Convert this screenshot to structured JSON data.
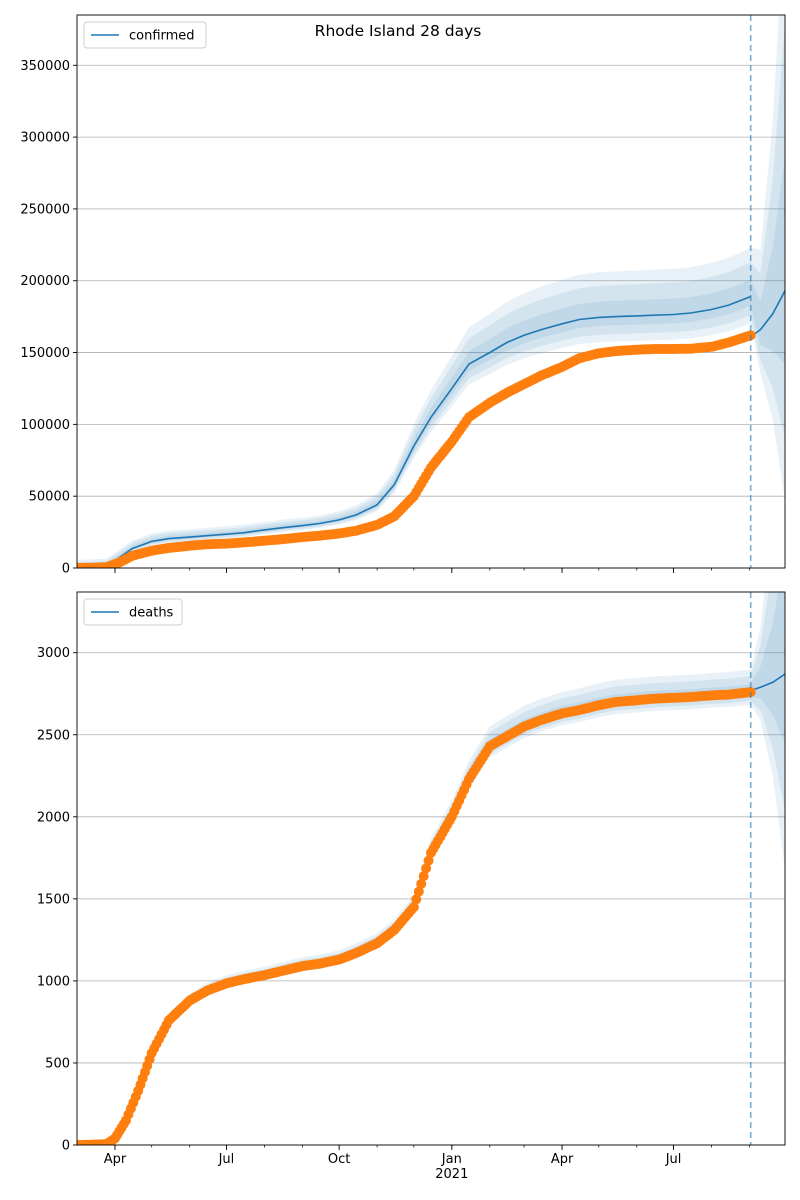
{
  "title": "Rhode Island 28 days",
  "chart_data": [
    {
      "type": "line",
      "legend": "confirmed",
      "legend_position": "top-left",
      "grid": "y",
      "xlim": [
        "2020-03-01",
        "2021-09-30"
      ],
      "ylim": [
        0,
        385000
      ],
      "yticks": [
        0,
        50000,
        100000,
        150000,
        200000,
        250000,
        300000,
        350000
      ],
      "forecast_start": "2021-09-02",
      "observed": {
        "color": "#ff7f0e",
        "x": [
          "2020-03-01",
          "2020-03-25",
          "2020-04-05",
          "2020-04-15",
          "2020-05-01",
          "2020-05-15",
          "2020-06-01",
          "2020-06-15",
          "2020-07-01",
          "2020-07-15",
          "2020-08-01",
          "2020-08-15",
          "2020-09-01",
          "2020-09-15",
          "2020-10-01",
          "2020-10-15",
          "2020-11-01",
          "2020-11-15",
          "2020-12-01",
          "2020-12-15",
          "2021-01-01",
          "2021-01-15",
          "2021-02-01",
          "2021-02-15",
          "2021-03-01",
          "2021-03-15",
          "2021-04-01",
          "2021-04-15",
          "2021-05-01",
          "2021-05-15",
          "2021-06-01",
          "2021-06-15",
          "2021-07-01",
          "2021-07-15",
          "2021-08-01",
          "2021-08-15",
          "2021-09-02"
        ],
        "y": [
          0,
          500,
          4000,
          8500,
          12000,
          14000,
          15500,
          16500,
          17000,
          17800,
          19000,
          20000,
          21500,
          22500,
          24000,
          26000,
          30000,
          36000,
          50000,
          70000,
          88000,
          105000,
          115000,
          122000,
          128000,
          134000,
          140000,
          146000,
          149500,
          151000,
          152000,
          152500,
          152500,
          152700,
          154000,
          157000,
          162000
        ]
      },
      "mean": {
        "color": "#1f77b4",
        "x": [
          "2020-03-01",
          "2020-03-25",
          "2020-04-05",
          "2020-04-15",
          "2020-05-01",
          "2020-05-15",
          "2020-06-01",
          "2020-06-15",
          "2020-07-01",
          "2020-07-15",
          "2020-08-01",
          "2020-08-15",
          "2020-09-01",
          "2020-09-15",
          "2020-10-01",
          "2020-10-15",
          "2020-11-01",
          "2020-11-15",
          "2020-12-01",
          "2020-12-15",
          "2021-01-01",
          "2021-01-15",
          "2021-02-01",
          "2021-02-15",
          "2021-03-01",
          "2021-03-15",
          "2021-04-01",
          "2021-04-15",
          "2021-05-01",
          "2021-05-15",
          "2021-06-01",
          "2021-06-15",
          "2021-07-01",
          "2021-07-15",
          "2021-08-01",
          "2021-08-15",
          "2021-09-02"
        ],
        "y": [
          0,
          1000,
          7500,
          13500,
          18500,
          20500,
          21500,
          22500,
          23500,
          24500,
          26500,
          28000,
          29500,
          31000,
          33500,
          37000,
          44000,
          58000,
          85000,
          105000,
          125000,
          142000,
          150000,
          157000,
          162000,
          166000,
          170000,
          173000,
          174500,
          175000,
          175500,
          176000,
          176500,
          177500,
          180000,
          183000,
          189000
        ]
      },
      "forecast": {
        "x": [
          "2021-09-02",
          "2021-09-10",
          "2021-09-20",
          "2021-09-30"
        ],
        "y": [
          161000,
          166000,
          177000,
          193000
        ]
      }
    },
    {
      "type": "line",
      "legend": "deaths",
      "legend_position": "top-left",
      "grid": "y",
      "xlim": [
        "2020-03-01",
        "2021-09-30"
      ],
      "ylim": [
        0,
        3370
      ],
      "yticks": [
        0,
        500,
        1000,
        1500,
        2000,
        2500,
        3000
      ],
      "xticks": [
        {
          "date": "2020-04-01",
          "label": "Apr"
        },
        {
          "date": "2020-07-01",
          "label": "Jul"
        },
        {
          "date": "2020-10-01",
          "label": "Oct"
        },
        {
          "date": "2021-01-01",
          "label": "Jan",
          "sublabel": "2021"
        },
        {
          "date": "2021-04-01",
          "label": "Apr"
        },
        {
          "date": "2021-07-01",
          "label": "Jul"
        }
      ],
      "forecast_start": "2021-09-02",
      "observed": {
        "color": "#ff7f0e",
        "x": [
          "2020-03-01",
          "2020-03-25",
          "2020-04-01",
          "2020-04-10",
          "2020-04-20",
          "2020-05-01",
          "2020-05-15",
          "2020-06-01",
          "2020-06-15",
          "2020-07-01",
          "2020-07-15",
          "2020-08-01",
          "2020-08-15",
          "2020-09-01",
          "2020-09-15",
          "2020-10-01",
          "2020-10-15",
          "2020-11-01",
          "2020-11-15",
          "2020-12-01",
          "2020-12-15",
          "2021-01-01",
          "2021-01-15",
          "2021-02-01",
          "2021-02-15",
          "2021-03-01",
          "2021-03-15",
          "2021-04-01",
          "2021-04-15",
          "2021-05-01",
          "2021-05-15",
          "2021-06-01",
          "2021-06-15",
          "2021-07-01",
          "2021-07-15",
          "2021-08-01",
          "2021-08-15",
          "2021-09-02"
        ],
        "y": [
          0,
          5,
          40,
          150,
          330,
          560,
          760,
          880,
          940,
          985,
          1010,
          1035,
          1060,
          1090,
          1105,
          1130,
          1170,
          1230,
          1310,
          1450,
          1780,
          2000,
          2230,
          2430,
          2490,
          2550,
          2590,
          2630,
          2650,
          2680,
          2700,
          2710,
          2720,
          2725,
          2730,
          2740,
          2745,
          2760
        ]
      },
      "mean": {
        "color": "#1f77b4",
        "x": [
          "2020-03-01",
          "2020-03-25",
          "2020-04-01",
          "2020-04-10",
          "2020-04-20",
          "2020-05-01",
          "2020-05-15",
          "2020-06-01",
          "2020-06-15",
          "2020-07-01",
          "2020-07-15",
          "2020-08-01",
          "2020-08-15",
          "2020-09-01",
          "2020-09-15",
          "2020-10-01",
          "2020-10-15",
          "2020-11-01",
          "2020-11-15",
          "2020-12-01",
          "2020-12-15",
          "2021-01-01",
          "2021-01-15",
          "2021-02-01",
          "2021-02-15",
          "2021-03-01",
          "2021-03-15",
          "2021-04-01",
          "2021-04-15",
          "2021-05-01",
          "2021-05-15",
          "2021-06-01",
          "2021-06-15",
          "2021-07-01",
          "2021-07-15",
          "2021-08-01",
          "2021-08-15",
          "2021-09-02"
        ],
        "y": [
          0,
          5,
          40,
          150,
          330,
          560,
          760,
          880,
          940,
          985,
          1010,
          1035,
          1060,
          1090,
          1105,
          1130,
          1170,
          1230,
          1310,
          1450,
          1780,
          2000,
          2230,
          2430,
          2490,
          2550,
          2590,
          2630,
          2650,
          2680,
          2700,
          2710,
          2720,
          2725,
          2730,
          2740,
          2745,
          2760
        ]
      },
      "forecast": {
        "x": [
          "2021-09-02",
          "2021-09-10",
          "2021-09-20",
          "2021-09-30"
        ],
        "y": [
          2770,
          2790,
          2820,
          2870
        ]
      }
    }
  ]
}
